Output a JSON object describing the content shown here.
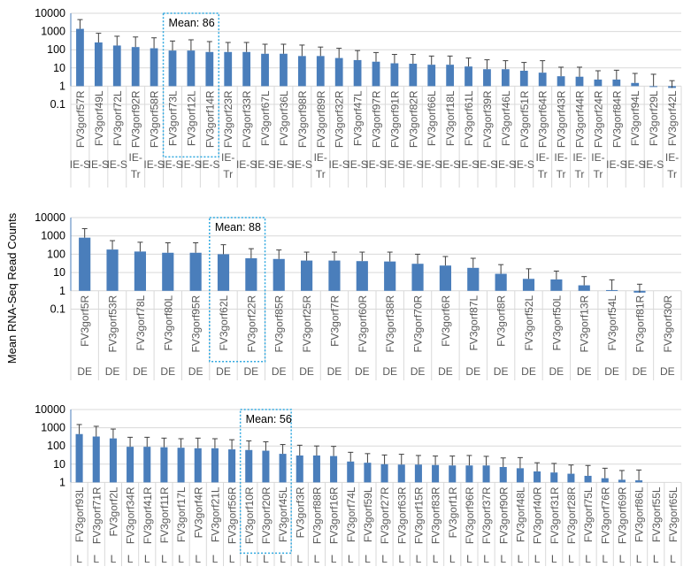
{
  "chart_data": {
    "type": "bar",
    "ylabel": "Mean RNA-Seq Read Counts",
    "yscale": "log",
    "grid": true,
    "bar_color": "#4a7ebb",
    "mean_box_color": "#2fa8e0",
    "panels": [
      {
        "ylim": [
          0.1,
          10000
        ],
        "yticks": [
          "0.1",
          "1",
          "10",
          "100",
          "1000",
          "10000"
        ],
        "mean_box": {
          "label": "Mean: 86",
          "start": 5,
          "end": 7
        },
        "categories": [
          "FV3gorf57R",
          "FV3gorf49L",
          "FV3gorf72L",
          "FV3gorf92R",
          "FV3gorf58R",
          "FV3gorf73L",
          "FV3gorf12L",
          "FV3gorf14R",
          "FV3gorf23R",
          "FV3gorf33R",
          "FV3gorf67L",
          "FV3gorf36L",
          "FV3gorf98R",
          "FV3gorf89R",
          "FV3gorf32R",
          "FV3gorf47L",
          "FV3gorf97R",
          "FV3gorf91R",
          "FV3gorf82R",
          "FV3gorf66L",
          "FV3gorf18L",
          "FV3gorf61L",
          "FV3gorf39R",
          "FV3gorf46L",
          "FV3gorf51R",
          "FV3gorf64R",
          "FV3gorf43R",
          "FV3gorf44R",
          "FV3gorf24R",
          "FV3gorf84R",
          "FV3gorf94L",
          "FV3gorf29L",
          "FV3gorf42L"
        ],
        "groups": [
          "IE-S",
          "IE-S",
          "IE-S",
          "IE-Tr",
          "IE-S",
          "IE-S",
          "IE-S",
          "IE-S",
          "IE-Tr",
          "IE-S",
          "IE-S",
          "IE-S",
          "IE-S",
          "IE-Tr",
          "IE-S",
          "IE-S",
          "IE-S",
          "IE-S",
          "IE-S",
          "IE-S",
          "IE-S",
          "IE-S",
          "IE-S",
          "IE-S",
          "IE-S",
          "IE-Tr",
          "IE-Tr",
          "IE-Tr",
          "IE-Tr",
          "IE-S",
          "IE-S",
          "IE-S",
          "IE-Tr"
        ],
        "values": [
          1400,
          250,
          170,
          140,
          120,
          90,
          90,
          75,
          75,
          75,
          60,
          60,
          45,
          45,
          35,
          27,
          22,
          18,
          17,
          15,
          15,
          12,
          8.5,
          8.5,
          7,
          5.5,
          3.5,
          3.3,
          2.3,
          2.3,
          1.5,
          1,
          0.8
        ],
        "error_top": [
          4500,
          800,
          550,
          500,
          450,
          300,
          350,
          280,
          250,
          250,
          200,
          200,
          180,
          140,
          120,
          90,
          70,
          55,
          55,
          45,
          45,
          35,
          28,
          25,
          20,
          25,
          11,
          11,
          7,
          7.5,
          5,
          4.5,
          2
        ]
      },
      {
        "ylim": [
          0.1,
          10000
        ],
        "yticks": [
          "0.1",
          "1",
          "10",
          "100",
          "1000",
          "10000"
        ],
        "mean_box": {
          "label": "Mean: 88",
          "start": 5,
          "end": 6
        },
        "categories": [
          "FV3gorf5R",
          "FV3gorf53R",
          "FV3gorf78L",
          "FV3gorf80L",
          "FV3gorf95R",
          "FV3gorf62L",
          "FV3gorf22R",
          "FV3gorf85R",
          "FV3gorf25R",
          "FV3gorf7R",
          "FV3gorf60R",
          "FV3gorf38R",
          "FV3gorf70R",
          "FV3gorf6R",
          "FV3gorf87L",
          "FV3gorf8R",
          "FV3gorf52L",
          "FV3gorf50L",
          "FV3gorf13R",
          "FV3gorf54L",
          "FV3gorf81R",
          "FV3gorf30R"
        ],
        "groups": [
          "DE",
          "DE",
          "DE",
          "DE",
          "DE",
          "DE",
          "DE",
          "DE",
          "DE",
          "DE",
          "DE",
          "DE",
          "DE",
          "DE",
          "DE",
          "DE",
          "DE",
          "DE",
          "DE",
          "DE",
          "DE",
          "DE"
        ],
        "values": [
          800,
          180,
          140,
          120,
          120,
          100,
          60,
          55,
          45,
          45,
          42,
          40,
          30,
          24,
          18,
          8.5,
          4.5,
          4.2,
          2,
          1.1,
          0.8,
          0
        ],
        "error_top": [
          2500,
          550,
          450,
          420,
          420,
          330,
          200,
          170,
          130,
          130,
          130,
          130,
          100,
          75,
          60,
          27,
          16,
          12,
          6,
          4,
          2.3,
          0
        ]
      },
      {
        "ylim": [
          1,
          10000
        ],
        "yticks": [
          "1",
          "10",
          "100",
          "1000",
          "10000"
        ],
        "mean_box": {
          "label": "Mean: 56",
          "start": 10,
          "end": 12
        },
        "categories": [
          "FV3gorf93L",
          "FV3gorf71R",
          "FV3gorf2L",
          "FV3gorf34R",
          "FV3gorf41R",
          "FV3gorf11R",
          "FV3gorf17L",
          "FV3gorf4R",
          "FV3gorf21L",
          "FV3gorf56R",
          "FV3gorf10R",
          "FV3gorf20R",
          "FV3gorf45L",
          "FV3gorf3R",
          "FV3gorf88R",
          "FV3gorf16R",
          "FV3gorf74L",
          "FV3gorf59L",
          "FV3gorf27R",
          "FV3gorf63R",
          "FV3gorf15R",
          "FV3gorf83R",
          "FV3gorf1R",
          "FV3gorf96R",
          "FV3gorf37R",
          "FV3gorf90R",
          "FV3gorf48L",
          "FV3gorf40R",
          "FV3gorf31R",
          "FV3gorf28R",
          "FV3gorf75L",
          "FV3gorf76R",
          "FV3gorf69R",
          "FV3gorf86L",
          "FV3gorf55L",
          "FV3gorf65L"
        ],
        "groups": [
          "L",
          "L",
          "L",
          "L",
          "L",
          "L",
          "L",
          "L",
          "L",
          "L",
          "L",
          "L",
          "L",
          "L",
          "L",
          "L",
          "L",
          "L",
          "L",
          "L",
          "L",
          "L",
          "L",
          "L",
          "L",
          "L",
          "L",
          "L",
          "L",
          "L",
          "L",
          "L",
          "L",
          "L",
          "L",
          "L"
        ],
        "values": [
          450,
          330,
          260,
          90,
          90,
          85,
          80,
          75,
          75,
          65,
          60,
          55,
          37,
          30,
          30,
          28,
          14,
          12,
          10,
          9.5,
          9.5,
          9,
          8.5,
          8.5,
          8.5,
          7,
          6,
          4,
          3.5,
          3,
          2.3,
          1.7,
          1.4,
          1.3,
          0,
          0
        ],
        "error_top": [
          1500,
          1200,
          850,
          300,
          300,
          270,
          250,
          270,
          250,
          220,
          190,
          170,
          120,
          110,
          100,
          95,
          45,
          38,
          32,
          35,
          30,
          28,
          28,
          30,
          27,
          22,
          23,
          12,
          11,
          9,
          8.5,
          6,
          4.5,
          4.8,
          0,
          0
        ]
      }
    ]
  }
}
